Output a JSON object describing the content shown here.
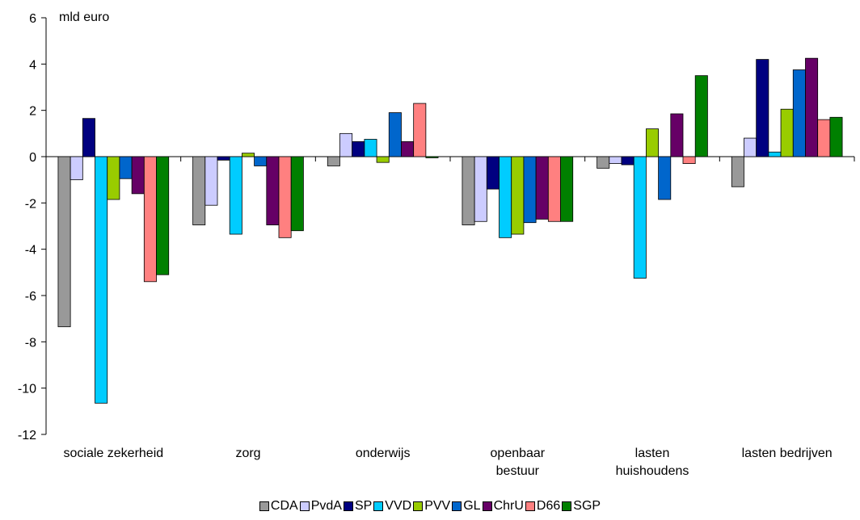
{
  "chart_data": {
    "type": "bar",
    "unit_label": "mld euro",
    "categories": [
      [
        "sociale zekerheid"
      ],
      [
        "zorg"
      ],
      [
        "onderwijs"
      ],
      [
        "openbaar",
        "bestuur"
      ],
      [
        "lasten",
        "huishoudens"
      ],
      [
        "lasten bedrijven"
      ]
    ],
    "ylim": [
      -12,
      6
    ],
    "yticks": [
      6,
      4,
      2,
      0,
      -2,
      -4,
      -6,
      -8,
      -10,
      -12
    ],
    "grid": false,
    "legend_position": "bottom",
    "series": [
      {
        "name": "CDA",
        "color": "#999999",
        "values": [
          -7.35,
          -2.95,
          -0.4,
          -2.95,
          -0.5,
          -1.3
        ]
      },
      {
        "name": "PvdA",
        "color": "#ccccff",
        "values": [
          -1.0,
          -2.1,
          1.0,
          -2.8,
          -0.3,
          0.8
        ]
      },
      {
        "name": "SP",
        "color": "#000080",
        "values": [
          1.65,
          -0.15,
          0.65,
          -1.4,
          -0.35,
          4.2
        ]
      },
      {
        "name": "VVD",
        "color": "#00ccff",
        "values": [
          -10.65,
          -3.35,
          0.75,
          -3.5,
          -5.25,
          0.2
        ]
      },
      {
        "name": "PVV",
        "color": "#99cc00",
        "values": [
          -1.85,
          0.15,
          -0.25,
          -3.35,
          1.2,
          2.05
        ]
      },
      {
        "name": "GL",
        "color": "#0066cc",
        "values": [
          -0.95,
          -0.4,
          1.9,
          -2.85,
          -1.85,
          3.75
        ]
      },
      {
        "name": "ChrU",
        "color": "#660066",
        "values": [
          -1.6,
          -2.95,
          0.65,
          -2.7,
          1.85,
          4.25
        ]
      },
      {
        "name": "D66",
        "color": "#ff8080",
        "values": [
          -5.4,
          -3.5,
          2.3,
          -2.8,
          -0.3,
          1.6
        ]
      },
      {
        "name": "SGP",
        "color": "#008000",
        "values": [
          -5.1,
          -3.2,
          -0.05,
          -2.8,
          3.5,
          1.7
        ]
      }
    ]
  }
}
